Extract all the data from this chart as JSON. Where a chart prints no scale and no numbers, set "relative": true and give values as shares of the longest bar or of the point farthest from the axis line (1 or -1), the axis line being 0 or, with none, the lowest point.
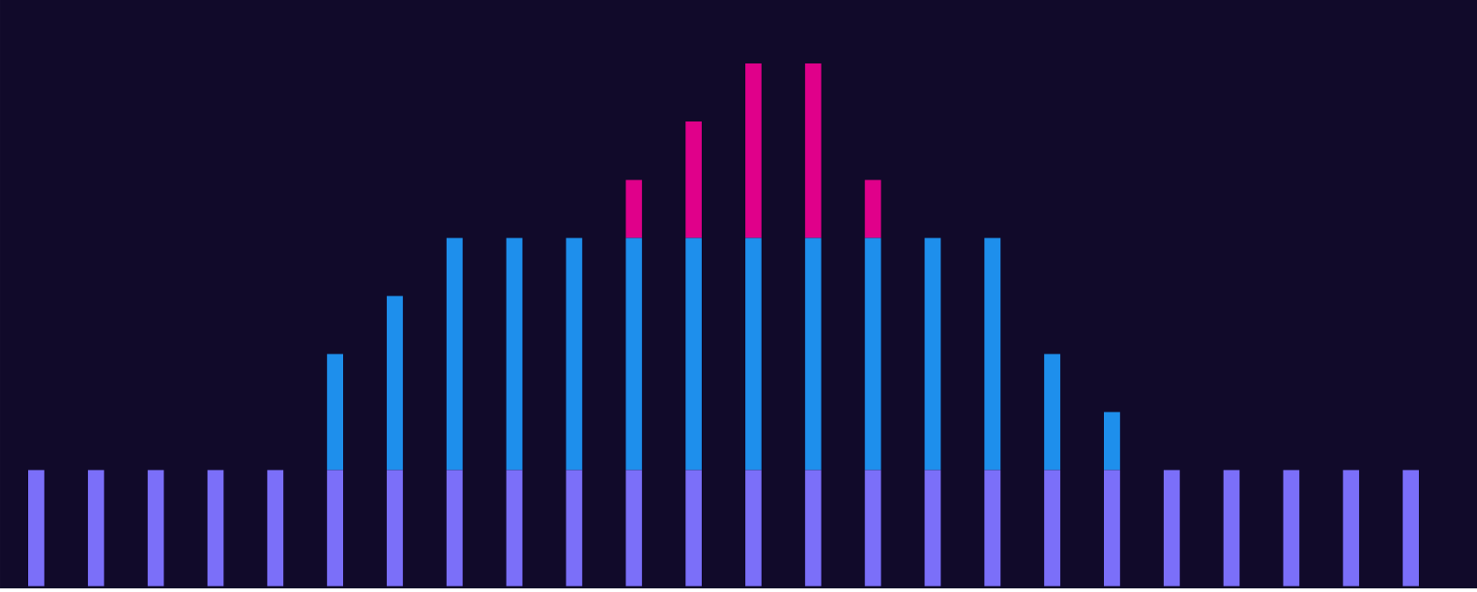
{
  "chart_data": {
    "type": "bar",
    "relative": true,
    "stacked": true,
    "categories": [
      null,
      null,
      null,
      null,
      null,
      null,
      null,
      null,
      null,
      null,
      null,
      null,
      null,
      null,
      null,
      null,
      null,
      null,
      null,
      null,
      null,
      null,
      null,
      null
    ],
    "series": [
      {
        "color": "#7b6ff9",
        "values": [
          0.222,
          0.222,
          0.222,
          0.222,
          0.222,
          0.222,
          0.222,
          0.222,
          0.222,
          0.222,
          0.222,
          0.222,
          0.222,
          0.222,
          0.222,
          0.222,
          0.222,
          0.222,
          0.222,
          0.222,
          0.222,
          0.222,
          0.222,
          0.222
        ]
      },
      {
        "color": "#1e8fec",
        "values": [
          null,
          null,
          null,
          null,
          null,
          0.222,
          0.333,
          0.444,
          0.444,
          0.444,
          0.444,
          0.444,
          0.444,
          0.444,
          0.444,
          0.444,
          0.444,
          0.222,
          0.111,
          null,
          null,
          null,
          null,
          null
        ]
      },
      {
        "color": "#e0008a",
        "values": [
          null,
          null,
          null,
          null,
          null,
          null,
          null,
          null,
          null,
          null,
          0.111,
          0.223,
          0.334,
          0.334,
          0.111,
          null,
          null,
          null,
          null,
          null,
          null,
          null,
          null,
          null
        ]
      }
    ]
  }
}
